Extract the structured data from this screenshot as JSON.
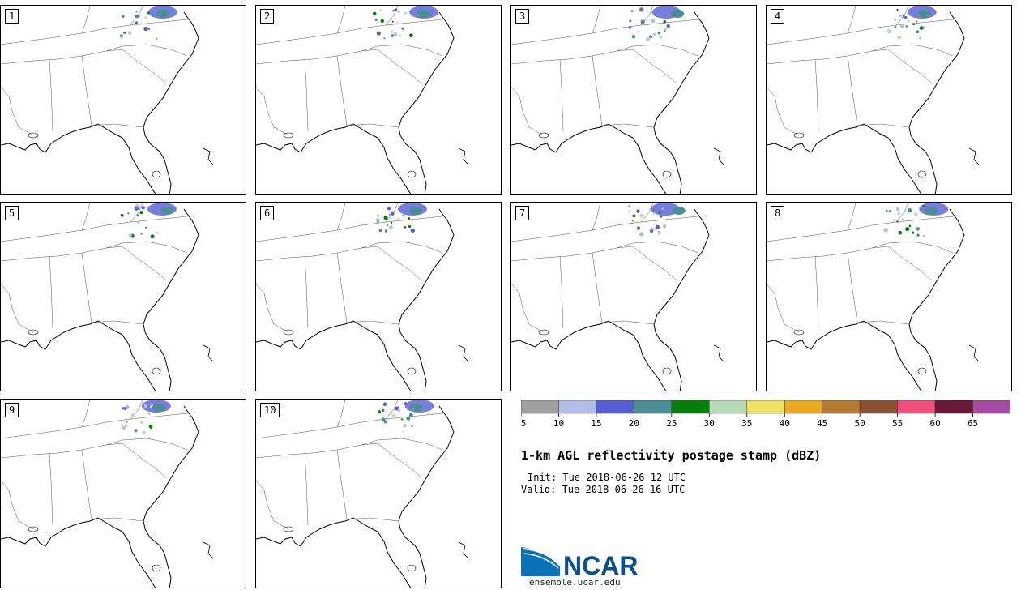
{
  "panels": [
    "1",
    "2",
    "3",
    "4",
    "5",
    "6",
    "7",
    "8",
    "9",
    "10"
  ],
  "colorbar": {
    "colors": [
      "#a0a0a0",
      "#b2bde8",
      "#565ed6",
      "#4a8d96",
      "#078007",
      "#b7dbb7",
      "#f0e062",
      "#eba823",
      "#b57a31",
      "#8a5234",
      "#ef4f7d",
      "#6b1836",
      "#a84aa4"
    ],
    "tick_labels": [
      "5",
      "10",
      "15",
      "20",
      "25",
      "30",
      "35",
      "40",
      "45",
      "50",
      "55",
      "60",
      "65"
    ]
  },
  "title": "1-km AGL reflectivity postage stamp (dBZ)",
  "init": "Init: Tue 2018-06-26 12 UTC",
  "valid": "Valid: Tue 2018-06-26 16 UTC",
  "logo_text": "NCAR",
  "site": "ensemble.ucar.edu"
}
